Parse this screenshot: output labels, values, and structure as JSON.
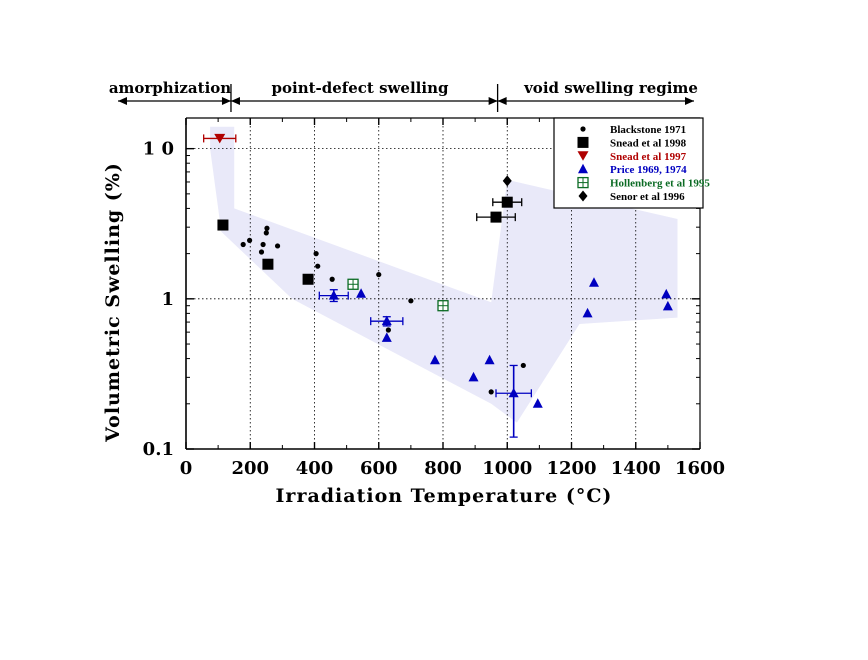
{
  "chart_data": {
    "type": "scatter",
    "title": "",
    "xlabel": "Irradiation  Temperature  (°C)",
    "ylabel": "Volumetric  Swelling  (%)",
    "xlim": [
      0,
      1600
    ],
    "ylim": [
      0.1,
      16
    ],
    "yscale": "log",
    "x_ticks": [
      0,
      200,
      400,
      600,
      800,
      1000,
      1200,
      1400,
      1600
    ],
    "x_tick_labels": [
      "0",
      "200",
      "400",
      "600",
      "800",
      "1000",
      "1200",
      "1400",
      "1600"
    ],
    "y_ticks": [
      0.1,
      1,
      10
    ],
    "y_tick_labels": [
      "0.1",
      "1",
      "1 0"
    ],
    "grid": "dotted gridlines at x = 200, 400, 600, 800, 1000, 1200, 1400 and y = 1, 10",
    "legend_position": "top-right",
    "regimes": [
      {
        "label": "amorphization",
        "x_start": 0,
        "x_end": 140
      },
      {
        "label": "point-defect swelling",
        "x_start": 140,
        "x_end": 970
      },
      {
        "label": "void swelling regime",
        "x_start": 970,
        "x_end": 1600
      }
    ],
    "band": {
      "color": "#e9e9f9",
      "upper": [
        [
          75,
          14
        ],
        [
          150,
          14
        ],
        [
          150,
          4.0
        ],
        [
          950,
          0.95
        ],
        [
          1000,
          6.2
        ],
        [
          1530,
          3.4
        ]
      ],
      "lower": [
        [
          1530,
          0.75
        ],
        [
          1225,
          0.68
        ],
        [
          1030,
          0.15
        ],
        [
          950,
          0.2
        ],
        [
          330,
          1.0
        ],
        [
          110,
          2.8
        ],
        [
          75,
          10
        ]
      ]
    },
    "series": [
      {
        "name": "Blackstone 1971",
        "marker": "circle",
        "color": "#000000",
        "points": [
          [
            178,
            2.3
          ],
          [
            198,
            2.45
          ],
          [
            235,
            2.05
          ],
          [
            240,
            2.3
          ],
          [
            250,
            2.75
          ],
          [
            252,
            2.95
          ],
          [
            285,
            2.25
          ],
          [
            405,
            2.0
          ],
          [
            410,
            1.65
          ],
          [
            455,
            1.35
          ],
          [
            600,
            1.45
          ],
          [
            630,
            0.62
          ],
          [
            700,
            0.97
          ],
          [
            950,
            0.24
          ],
          [
            1050,
            0.36
          ]
        ]
      },
      {
        "name": "Snead et al 1998",
        "marker": "square",
        "color": "#000000",
        "points": [
          [
            115,
            3.1
          ],
          [
            255,
            1.7
          ],
          [
            380,
            1.35
          ],
          [
            965,
            3.5
          ],
          [
            1000,
            4.4
          ]
        ],
        "x_error": [
          0,
          0,
          0,
          60,
          45
        ]
      },
      {
        "name": "Snead et al 1997",
        "marker": "triangle-down",
        "color": "#b00000",
        "points": [
          [
            105,
            11.7
          ]
        ],
        "x_error": [
          50
        ]
      },
      {
        "name": "Price 1969, 1974",
        "marker": "triangle-up",
        "color": "#0000c0",
        "points": [
          [
            460,
            1.05
          ],
          [
            545,
            1.08
          ],
          [
            625,
            0.71
          ],
          [
            625,
            0.55
          ],
          [
            775,
            0.39
          ],
          [
            895,
            0.3
          ],
          [
            945,
            0.39
          ],
          [
            1020,
            0.235
          ],
          [
            1095,
            0.2
          ],
          [
            1250,
            0.8
          ],
          [
            1270,
            1.28
          ],
          [
            1495,
            1.07
          ],
          [
            1500,
            0.89
          ]
        ],
        "x_error": [
          45,
          0,
          50,
          0,
          0,
          0,
          0,
          55,
          0,
          0,
          0,
          0,
          0
        ],
        "y_error_low": [
          0.96,
          null,
          0.66,
          null,
          null,
          null,
          null,
          0.12,
          null,
          null,
          null,
          null,
          null
        ],
        "y_error_high": [
          1.15,
          null,
          0.76,
          null,
          null,
          null,
          null,
          0.36,
          null,
          null,
          null,
          null,
          null
        ]
      },
      {
        "name": "Hollenberg et al 1995",
        "marker": "square-crossed",
        "color": "#0b6b24",
        "points": [
          [
            520,
            1.25
          ],
          [
            800,
            0.9
          ]
        ]
      },
      {
        "name": "Senor et al 1996",
        "marker": "diamond",
        "color": "#000000",
        "points": [
          [
            1000,
            6.1
          ]
        ]
      }
    ]
  }
}
